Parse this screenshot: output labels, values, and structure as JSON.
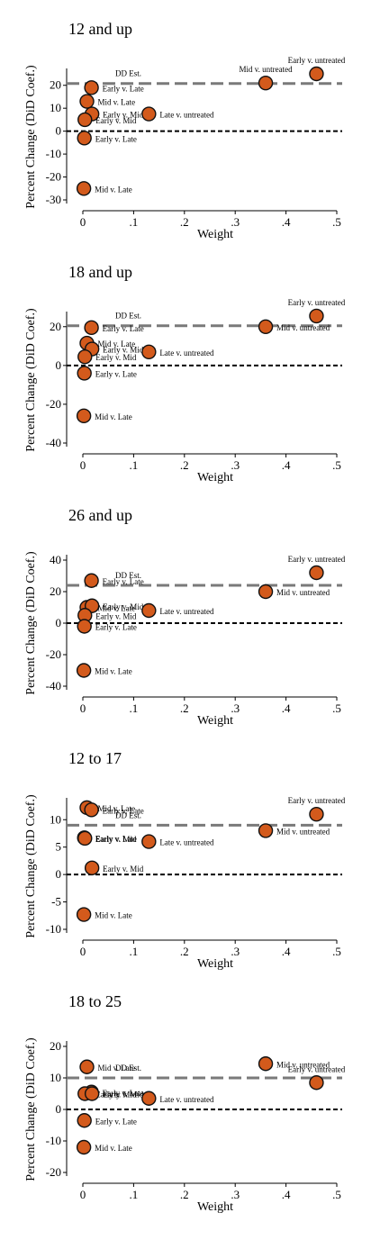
{
  "xlabel": "Weight",
  "ylabel": "Percent Change (DiD Coef.)",
  "dd_label": "DD Est.",
  "colors": {
    "point": "#d35a1c",
    "dd_line": "#7a7a7a",
    "zero_line": "#000000"
  },
  "chart_data": [
    {
      "type": "scatter",
      "title": "12 and up",
      "xlabel": "Weight",
      "ylabel": "Percent Change (DiD Coef.)",
      "xlim": [
        0,
        0.5
      ],
      "ylim": [
        -30,
        25
      ],
      "xticks": [
        0,
        0.1,
        0.2,
        0.3,
        0.4,
        0.5
      ],
      "xtick_labels": [
        "0",
        ".1",
        ".2",
        ".3",
        ".4",
        ".5"
      ],
      "yticks": [
        -30,
        -20,
        -10,
        0,
        10,
        20
      ],
      "ytick_labels": [
        "-30",
        "-20",
        "-10",
        "0",
        "10",
        "20"
      ],
      "dd_est": 20.8,
      "points": [
        {
          "label": "Early v. Late",
          "x": 0.017,
          "y": 19
        },
        {
          "label": "Mid v. Late",
          "x": 0.008,
          "y": 13
        },
        {
          "label": "Early v. Mid",
          "x": 0.018,
          "y": 7.5
        },
        {
          "label": "Early v. Mid",
          "x": 0.004,
          "y": 5
        },
        {
          "label": "Late v. untreated",
          "x": 0.13,
          "y": 7.5
        },
        {
          "label": "Early v. Late",
          "x": 0.003,
          "y": -3
        },
        {
          "label": "Mid v. Late",
          "x": 0.002,
          "y": -25
        },
        {
          "label": "Mid v. untreated",
          "x": 0.36,
          "y": 21
        },
        {
          "label": "Early v. untreated",
          "x": 0.46,
          "y": 25
        }
      ]
    },
    {
      "type": "scatter",
      "title": "18 and up",
      "xlabel": "Weight",
      "ylabel": "Percent Change (DiD Coef.)",
      "xlim": [
        0,
        0.5
      ],
      "ylim": [
        -40,
        25
      ],
      "xticks": [
        0,
        0.1,
        0.2,
        0.3,
        0.4,
        0.5
      ],
      "xtick_labels": [
        "0",
        ".1",
        ".2",
        ".3",
        ".4",
        ".5"
      ],
      "yticks": [
        -40,
        -20,
        0,
        20
      ],
      "ytick_labels": [
        "-40",
        "-20",
        "0",
        "20"
      ],
      "dd_est": 20.5,
      "points": [
        {
          "label": "Early v. Late",
          "x": 0.017,
          "y": 19.5
        },
        {
          "label": "Mid v. Late",
          "x": 0.008,
          "y": 11.5
        },
        {
          "label": "Early v. Mid",
          "x": 0.018,
          "y": 8.5
        },
        {
          "label": "Early v. Mid",
          "x": 0.004,
          "y": 4.5
        },
        {
          "label": "Late v. untreated",
          "x": 0.13,
          "y": 7
        },
        {
          "label": "Early v. Late",
          "x": 0.003,
          "y": -4
        },
        {
          "label": "Mid v. Late",
          "x": 0.002,
          "y": -26
        },
        {
          "label": "Mid v. untreated",
          "x": 0.36,
          "y": 20
        },
        {
          "label": "Early v. untreated",
          "x": 0.46,
          "y": 25.5
        }
      ]
    },
    {
      "type": "scatter",
      "title": "26 and up",
      "xlabel": "Weight",
      "ylabel": "Percent Change (DiD Coef.)",
      "xlim": [
        0,
        0.5
      ],
      "ylim": [
        -40,
        40
      ],
      "xticks": [
        0,
        0.1,
        0.2,
        0.3,
        0.4,
        0.5
      ],
      "xtick_labels": [
        "0",
        ".1",
        ".2",
        ".3",
        ".4",
        ".5"
      ],
      "yticks": [
        -40,
        -20,
        0,
        20,
        40
      ],
      "ytick_labels": [
        "-40",
        "-20",
        "0",
        "20",
        "40"
      ],
      "dd_est": 24,
      "points": [
        {
          "label": "Early v. Late",
          "x": 0.017,
          "y": 27
        },
        {
          "label": "Mid v. Late",
          "x": 0.008,
          "y": 10
        },
        {
          "label": "Early v. Mid",
          "x": 0.018,
          "y": 11
        },
        {
          "label": "Early v. Mid",
          "x": 0.004,
          "y": 5
        },
        {
          "label": "Late v. untreated",
          "x": 0.13,
          "y": 8
        },
        {
          "label": "Early v. Late",
          "x": 0.003,
          "y": -2
        },
        {
          "label": "Mid v. Late",
          "x": 0.002,
          "y": -30
        },
        {
          "label": "Mid v. untreated",
          "x": 0.36,
          "y": 20
        },
        {
          "label": "Early v. untreated",
          "x": 0.46,
          "y": 32
        }
      ]
    },
    {
      "type": "scatter",
      "title": "12 to 17",
      "xlabel": "Weight",
      "ylabel": "Percent Change (DiD Coef.)",
      "xlim": [
        0,
        0.5
      ],
      "ylim": [
        -10,
        13
      ],
      "xticks": [
        0,
        0.1,
        0.2,
        0.3,
        0.4,
        0.5
      ],
      "xtick_labels": [
        "0",
        ".1",
        ".2",
        ".3",
        ".4",
        ".5"
      ],
      "yticks": [
        -10,
        -5,
        0,
        5,
        10
      ],
      "ytick_labels": [
        "-10",
        "-5",
        "0",
        "5",
        "10"
      ],
      "dd_est": 9,
      "points": [
        {
          "label": "Mid v. Late",
          "x": 0.008,
          "y": 12.2
        },
        {
          "label": "Early v. Late",
          "x": 0.017,
          "y": 11.8
        },
        {
          "label": "Early v. Late",
          "x": 0.003,
          "y": 6.7
        },
        {
          "label": "Early v. Mid",
          "x": 0.004,
          "y": 6.6
        },
        {
          "label": "Late v. untreated",
          "x": 0.13,
          "y": 6
        },
        {
          "label": "Early v. Mid",
          "x": 0.018,
          "y": 1.2
        },
        {
          "label": "Mid v. Late",
          "x": 0.002,
          "y": -7.3
        },
        {
          "label": "Mid v. untreated",
          "x": 0.36,
          "y": 8
        },
        {
          "label": "Early v. untreated",
          "x": 0.46,
          "y": 11
        }
      ]
    },
    {
      "type": "scatter",
      "title": "18 to 25",
      "xlabel": "Weight",
      "ylabel": "Percent Change (DiD Coef.)",
      "xlim": [
        0,
        0.5
      ],
      "ylim": [
        -20,
        20
      ],
      "xticks": [
        0,
        0.1,
        0.2,
        0.3,
        0.4,
        0.5
      ],
      "xtick_labels": [
        "0",
        ".1",
        ".2",
        ".3",
        ".4",
        ".5"
      ],
      "yticks": [
        -20,
        -10,
        0,
        10,
        20
      ],
      "ytick_labels": [
        "-20",
        "-10",
        "0",
        "10",
        "20"
      ],
      "dd_est": 10,
      "points": [
        {
          "label": "Mid v. Late",
          "x": 0.008,
          "y": 13.5
        },
        {
          "label": "Early v. Late",
          "x": 0.017,
          "y": 5.5
        },
        {
          "label": "Early v. Mid",
          "x": 0.004,
          "y": 5
        },
        {
          "label": "Early v. Mid",
          "x": 0.018,
          "y": 5
        },
        {
          "label": "Late v. untreated",
          "x": 0.13,
          "y": 3.5
        },
        {
          "label": "Early v. Late",
          "x": 0.003,
          "y": -3.5
        },
        {
          "label": "Mid v. Late",
          "x": 0.002,
          "y": -12
        },
        {
          "label": "Mid v. untreated",
          "x": 0.36,
          "y": 14.5
        },
        {
          "label": "Early v. untreated",
          "x": 0.46,
          "y": 8.5
        }
      ]
    }
  ]
}
